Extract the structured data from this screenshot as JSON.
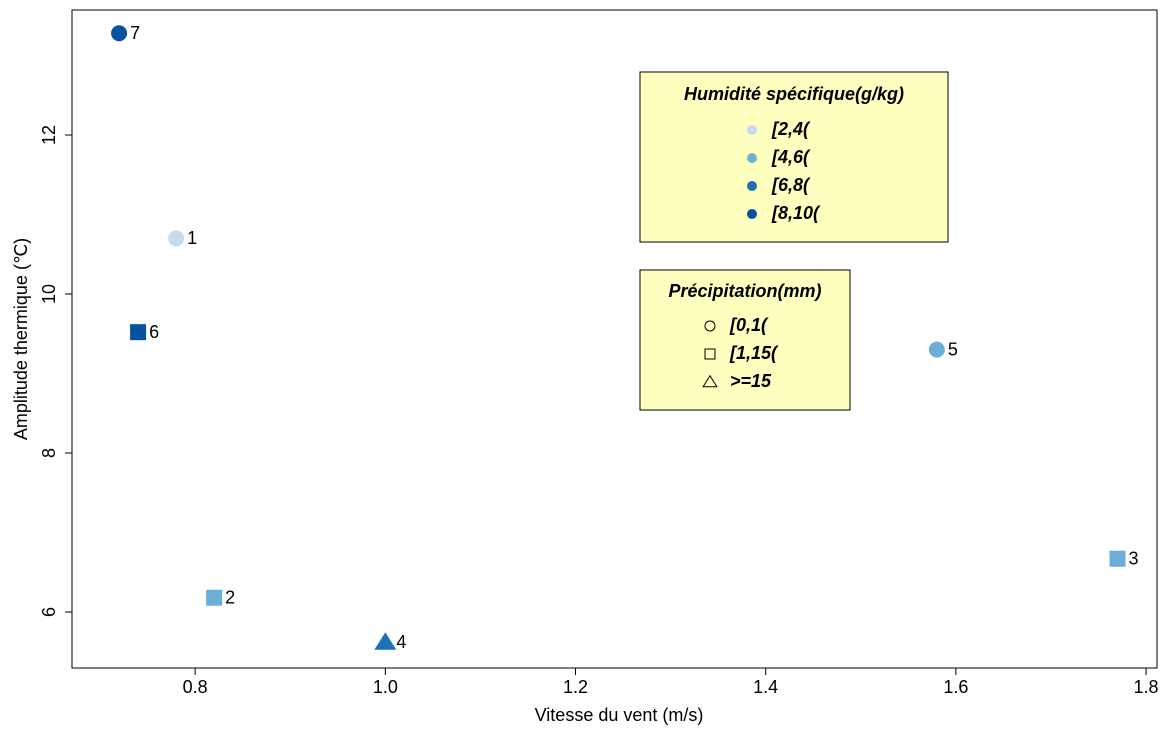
{
  "chart_data": {
    "type": "scatter",
    "xlabel": "Vitesse du vent (m/s)",
    "ylabel": "Amplitude thermique (℃)",
    "xlim": [
      0.6705,
      1.8115
    ],
    "ylim": [
      5.296,
      13.572
    ],
    "xticks": [
      0.8,
      {
        "value": 1,
        "label": "1.0"
      },
      1.2,
      1.4,
      1.6,
      1.8
    ],
    "yticks": [
      6,
      8,
      10,
      12
    ],
    "points": [
      {
        "label": "1",
        "x": 0.78,
        "y": 10.7,
        "humidity": "[2,4(",
        "precipitation": "[0,1("
      },
      {
        "label": "2",
        "x": 0.82,
        "y": 6.18,
        "humidity": "[4,6(",
        "precipitation": "[1,15("
      },
      {
        "label": "3",
        "x": 1.77,
        "y": 6.67,
        "humidity": "[4,6(",
        "precipitation": "[1,15("
      },
      {
        "label": "4",
        "x": 1.0,
        "y": 5.62,
        "humidity": "[6,8(",
        "precipitation": ">=15"
      },
      {
        "label": "5",
        "x": 1.58,
        "y": 9.3,
        "humidity": "[4,6(",
        "precipitation": "[0,1("
      },
      {
        "label": "6",
        "x": 0.74,
        "y": 9.52,
        "humidity": "[8,10(",
        "precipitation": "[1,15("
      },
      {
        "label": "7",
        "x": 0.72,
        "y": 13.28,
        "humidity": "[8,10(",
        "precipitation": "[0,1("
      }
    ],
    "legend_color": {
      "title": "Humidité spécifique(g/kg)",
      "entries": [
        {
          "label": "[2,4(",
          "color": "#c6dbef"
        },
        {
          "label": "[4,6(",
          "color": "#6baed6"
        },
        {
          "label": "[6,8(",
          "color": "#2171b5"
        },
        {
          "label": "[8,10(",
          "color": "#08519c"
        }
      ]
    },
    "legend_shape": {
      "title": "Précipitation(mm)",
      "entries": [
        {
          "label": "[0,1(",
          "shape": "circle"
        },
        {
          "label": "[1,15(",
          "shape": "square"
        },
        {
          "label": ">=15",
          "shape": "triangle"
        }
      ]
    }
  }
}
